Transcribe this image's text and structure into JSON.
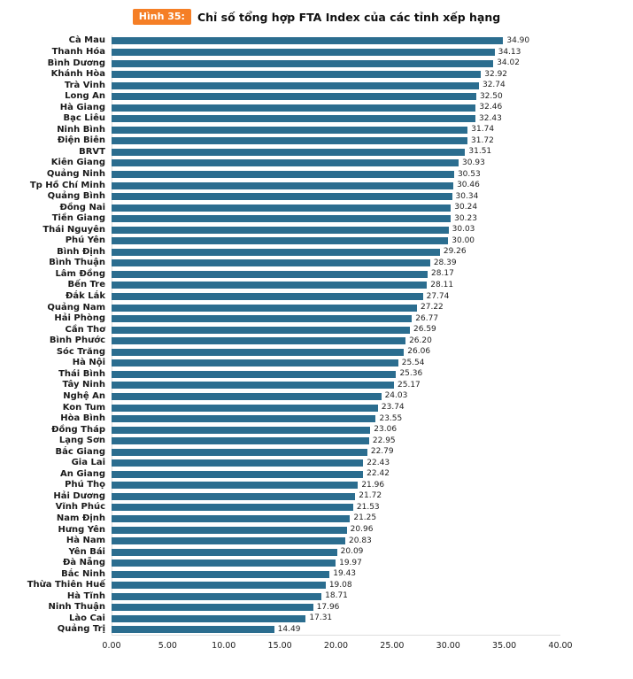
{
  "header": {
    "badge": "Hình 35:",
    "title": "Chỉ số tổng hợp FTA Index của các tỉnh xếp hạng"
  },
  "colors": {
    "bar": "#2B6D8F",
    "badge_bg": "#F57F26",
    "badge_text": "#FFFFFF"
  },
  "chart_data": {
    "type": "bar",
    "orientation": "horizontal",
    "title": "Chỉ số tổng hợp FTA Index của các tỉnh xếp hạng",
    "figure_label": "Hình 35:",
    "categories": [
      "Cà Mau",
      "Thanh Hóa",
      "Bình Dương",
      "Khánh Hòa",
      "Trà Vinh",
      "Long An",
      "Hà Giang",
      "Bạc Liêu",
      "Ninh Bình",
      "Điện Biên",
      "BRVT",
      "Kiên Giang",
      "Quảng Ninh",
      "Tp Hồ Chí Minh",
      "Quảng Bình",
      "Đồng Nai",
      "Tiền Giang",
      "Thái Nguyên",
      "Phú Yên",
      "Bình Định",
      "Bình Thuận",
      "Lâm Đồng",
      "Bến Tre",
      "Đắk Lắk",
      "Quảng Nam",
      "Hải Phòng",
      "Cần Thơ",
      "Bình Phước",
      "Sóc Trăng",
      "Hà Nội",
      "Thái Bình",
      "Tây Ninh",
      "Nghệ An",
      "Kon Tum",
      "Hòa Bình",
      "Đồng Tháp",
      "Lạng Sơn",
      "Bắc Giang",
      "Gia Lai",
      "An Giang",
      "Phú Thọ",
      "Hải Dương",
      "Vĩnh Phúc",
      "Nam Định",
      "Hưng Yên",
      "Hà Nam",
      "Yên Bái",
      "Đà Nẵng",
      "Bắc Ninh",
      "Thừa Thiên Huế",
      "Hà Tĩnh",
      "Ninh Thuận",
      "Lào Cai",
      "Quảng Trị"
    ],
    "values": [
      34.9,
      34.13,
      34.02,
      32.92,
      32.74,
      32.5,
      32.46,
      32.43,
      31.74,
      31.72,
      31.51,
      30.93,
      30.53,
      30.46,
      30.34,
      30.24,
      30.23,
      30.03,
      30.0,
      29.26,
      28.39,
      28.17,
      28.11,
      27.74,
      27.22,
      26.77,
      26.59,
      26.2,
      26.06,
      25.54,
      25.36,
      25.17,
      24.03,
      23.74,
      23.55,
      23.06,
      22.95,
      22.79,
      22.43,
      22.42,
      21.96,
      21.72,
      21.53,
      21.25,
      20.96,
      20.83,
      20.09,
      19.97,
      19.43,
      19.08,
      18.71,
      17.96,
      17.31,
      14.49
    ],
    "xlim": [
      0,
      40
    ],
    "x_ticks": [
      0,
      5,
      10,
      15,
      20,
      25,
      30,
      35,
      40
    ],
    "x_tick_labels": [
      "0.00",
      "5.00",
      "10.00",
      "15.00",
      "20.00",
      "25.00",
      "30.00",
      "35.00",
      "40.00"
    ],
    "xlabel": "",
    "ylabel": "",
    "grid": false,
    "legend": false,
    "bar_color": "#2B6D8F",
    "value_labels_shown": true
  }
}
